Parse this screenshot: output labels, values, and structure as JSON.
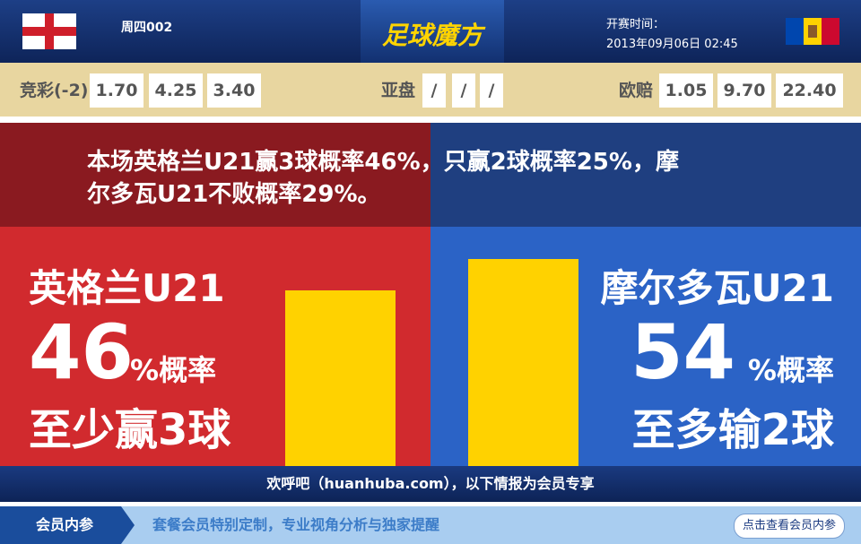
{
  "header": {
    "match_no": "周四002",
    "logo": "足球魔方",
    "kickoff_label": "开赛时间：",
    "kickoff_time": "2013年09月06日 02:45"
  },
  "odds": {
    "jingcai": {
      "label": "竞彩(-2)",
      "values": [
        "1.70",
        "4.25",
        "3.40"
      ]
    },
    "yapan": {
      "label": "亚盘",
      "values": [
        "/",
        "/",
        "/"
      ]
    },
    "oupei": {
      "label": "欧赔",
      "values": [
        "1.05",
        "9.70",
        "22.40"
      ]
    }
  },
  "headline": [
    "本场英格兰U21赢3球概率46%，只赢2球概率25%，摩",
    "尔多瓦U21不败概率29%。"
  ],
  "teams": [
    {
      "name": "英格兰U21",
      "pct": 46,
      "suffix": "%概率",
      "outcome": "至少赢3球"
    },
    {
      "name": "摩尔多瓦U21",
      "pct": 54,
      "suffix": "%概率",
      "outcome": "至多输2球"
    }
  ],
  "notice": "欢呼吧（huanhuba.com），以下情报为会员专享",
  "footer": {
    "tab": "会员内参",
    "text": "套餐会员特别定制，专业视角分析与独家提醒",
    "button": "点击查看会员内参"
  }
}
